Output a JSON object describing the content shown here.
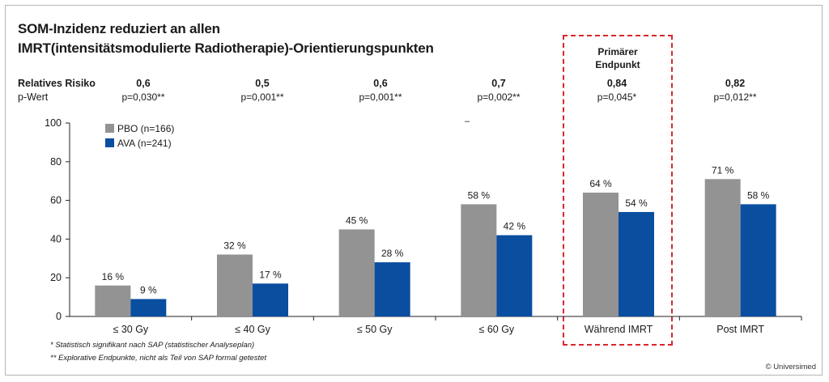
{
  "title_line1": "SOM-Inzidenz reduziert an allen",
  "title_line2": "IMRT(intensitätsmodulierte Radiotherapie)-Orientierungspunkten",
  "relative_risk_label": "Relatives Risiko",
  "p_value_label": "p-Wert",
  "stats": [
    {
      "rr": "0,6",
      "p": "p=0,030**"
    },
    {
      "rr": "0,5",
      "p": "p=0,001**"
    },
    {
      "rr": "0,6",
      "p": "p=0,001**"
    },
    {
      "rr": "0,7",
      "p": "p=0,002**"
    },
    {
      "rr": "0,84",
      "p": "p=0,045*"
    },
    {
      "rr": "0,82",
      "p": "p=0,012**"
    }
  ],
  "primary_endpoint_label_line1": "Primärer",
  "primary_endpoint_label_line2": "Endpunkt",
  "stray_mark": "–",
  "footnotes": [
    "* Statistisch signifikant nach SAP (statistischer Analyseplan)",
    "** Explorative Endpunkte, nicht als Teil von SAP formal getestet"
  ],
  "copyright": "© Universimed",
  "colors": {
    "pbo": "#939393",
    "ava": "#0a4ea0",
    "highlight": "#d9272e"
  },
  "chart_data": {
    "type": "bar",
    "categories": [
      "≤ 30 Gy",
      "≤ 40 Gy",
      "≤ 50 Gy",
      "≤ 60 Gy",
      "Während IMRT",
      "Post IMRT"
    ],
    "series": [
      {
        "name": "PBO (n=166)",
        "values": [
          16,
          32,
          45,
          58,
          64,
          71
        ],
        "labels": [
          "16 %",
          "32 %",
          "45 %",
          "58 %",
          "64 %",
          "71 %"
        ]
      },
      {
        "name": "AVA (n=241)",
        "values": [
          9,
          17,
          28,
          42,
          54,
          58
        ],
        "labels": [
          "9 %",
          "17 %",
          "28 %",
          "42 %",
          "54 %",
          "58 %"
        ]
      }
    ],
    "yticks": [
      0,
      20,
      40,
      60,
      80,
      100
    ],
    "ylim": [
      0,
      100
    ],
    "legend_position": "top-left",
    "grid": false
  }
}
